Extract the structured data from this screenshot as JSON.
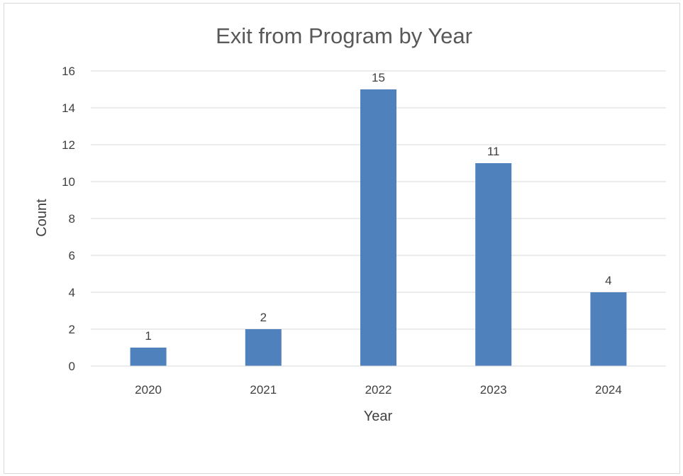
{
  "chart_data": {
    "type": "bar",
    "title": "Exit from Program by Year",
    "xlabel": "Year",
    "ylabel": "Count",
    "categories": [
      "2020",
      "2021",
      "2022",
      "2023",
      "2024"
    ],
    "values": [
      1,
      2,
      15,
      11,
      4
    ],
    "ylim": [
      0,
      16
    ],
    "yticks": [
      0,
      2,
      4,
      6,
      8,
      10,
      12,
      14,
      16
    ],
    "grid": true,
    "legend": "none",
    "data_labels": true,
    "colors": {
      "bar": "#4f81bd",
      "grid": "#d9d9d9",
      "text": "#404040",
      "title": "#595959"
    }
  }
}
